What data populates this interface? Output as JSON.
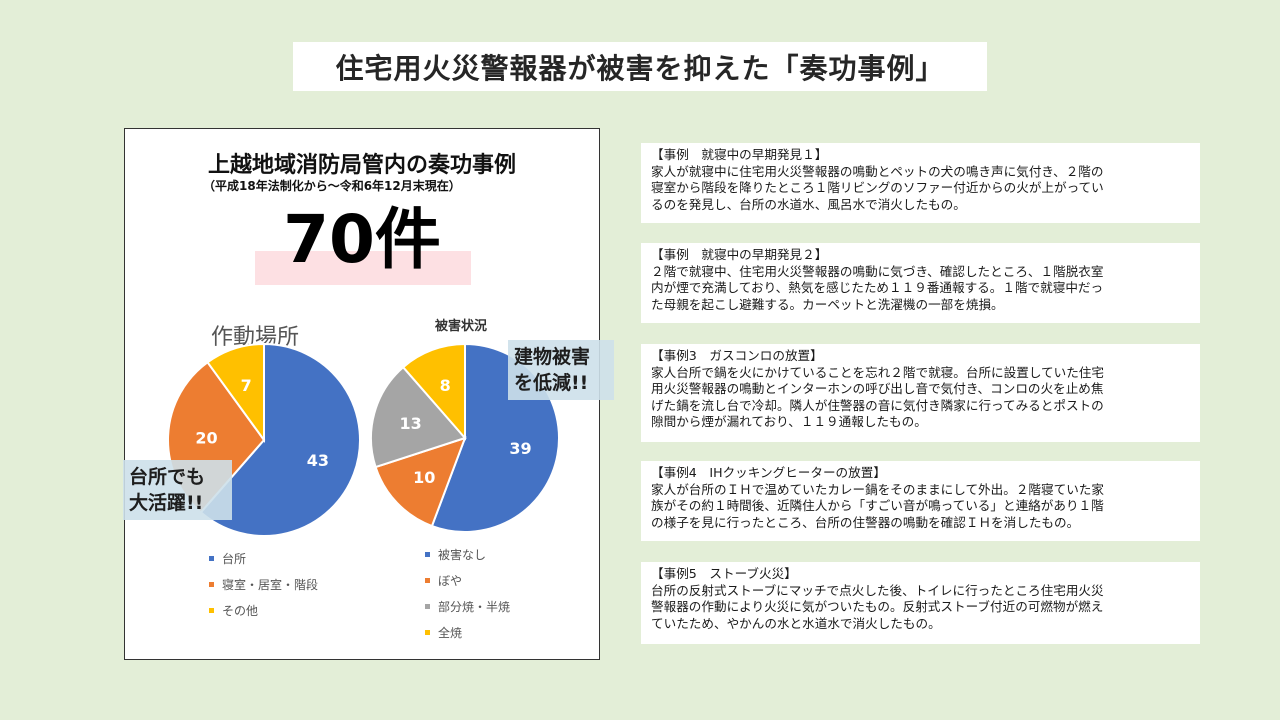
{
  "page": {
    "title": "住宅用火災警報器が被害を抑えた「奏功事例」"
  },
  "panel": {
    "title": "上越地域消防局管内の奏功事例",
    "subtitle": "（平成18年法制化から～令和6年12月末現在）",
    "total": "70件"
  },
  "callouts": {
    "kitchen": [
      "台所でも",
      "大活躍!!"
    ],
    "damage": [
      "建物被害",
      "を低減!!"
    ]
  },
  "chart_data": [
    {
      "type": "pie",
      "title": "作動場所",
      "categories": [
        "台所",
        "寝室・居室・階段",
        "その他"
      ],
      "values": [
        43,
        20,
        7
      ],
      "colors": [
        "#4472c4",
        "#ed7d31",
        "#ffc000"
      ]
    },
    {
      "type": "pie",
      "title": "被害状況",
      "categories": [
        "被害なし",
        "ぼや",
        "部分焼・半焼",
        "全焼"
      ],
      "values": [
        39,
        10,
        13,
        8
      ],
      "colors": [
        "#4472c4",
        "#ed7d31",
        "#a5a5a5",
        "#ffc000"
      ]
    }
  ],
  "cases": [
    {
      "heading": "【事例　就寝中の早期発見１】",
      "lines": [
        "家人が就寝中に住宅用火災警報器の鳴動とペットの犬の鳴き声に気付き、２階の",
        "寝室から階段を降りたところ１階リビングのソファー付近からの火が上がってい",
        "るのを発見し、台所の水道水、風呂水で消火したもの。"
      ]
    },
    {
      "heading": "【事例　就寝中の早期発見２】",
      "lines": [
        "２階で就寝中、住宅用火災警報器の鳴動に気づき、確認したところ、１階脱衣室",
        "内が煙で充満しており、熱気を感じたため１１９番通報する。１階で就寝中だっ",
        "た母親を起こし避難する。カーペットと洗濯機の一部を焼損。"
      ]
    },
    {
      "heading": "【事例3　ガスコンロの放置】",
      "lines": [
        "家人台所で鍋を火にかけていることを忘れ２階で就寝。台所に設置していた住宅",
        "用火災警報器の鳴動とインターホンの呼び出し音で気付き、コンロの火を止め焦",
        "げた鍋を流し台で冷却。隣人が住警器の音に気付き隣家に行ってみるとポストの",
        "隙間から煙が漏れており、１１９通報したもの。"
      ]
    },
    {
      "heading": "【事例4　IHクッキングヒーターの放置】",
      "lines": [
        "家人が台所のＩＨで温めていたカレー鍋をそのままにして外出。２階寝ていた家",
        "族がその約１時間後、近隣住人から「すごい音が鳴っている」と連絡があり１階",
        "の様子を見に行ったところ、台所の住警器の鳴動を確認ＩＨを消したもの。"
      ]
    },
    {
      "heading": "【事例5　ストーブ火災】",
      "lines": [
        "台所の反射式ストーブにマッチで点火した後、トイレに行ったところ住宅用火災",
        "警報器の作動により火災に気がついたもの。反射式ストーブ付近の可燃物が燃え",
        "ていたため、やかんの水と水道水で消火したもの。"
      ]
    }
  ]
}
